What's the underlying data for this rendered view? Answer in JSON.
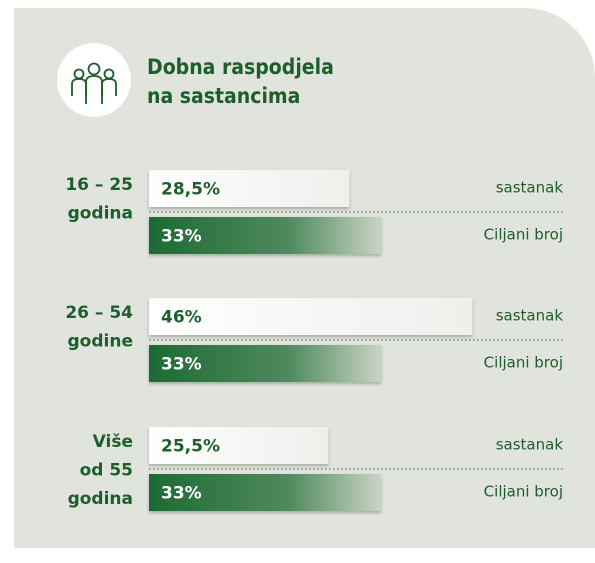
{
  "chart_data": {
    "type": "bar",
    "title": [
      "Dobna raspodjela",
      "na sastancima"
    ],
    "categories": [
      [
        "16 – 25",
        "godina"
      ],
      [
        "26 – 54",
        "godine"
      ],
      [
        "Više",
        "od 55",
        "godina"
      ]
    ],
    "series": [
      {
        "name": "sastanak",
        "color": "#ffffff",
        "text_color": "#1d5e2c",
        "values": [
          28.5,
          46,
          25.5
        ],
        "value_labels": [
          "28,5%",
          "46%",
          "25,5%"
        ]
      },
      {
        "name": "Ciljani broj",
        "color": "#1d6a34",
        "text_color": "#ffffff",
        "values": [
          33,
          33,
          33
        ],
        "value_labels": [
          "33%",
          "33%",
          "33%"
        ]
      }
    ]
  }
}
